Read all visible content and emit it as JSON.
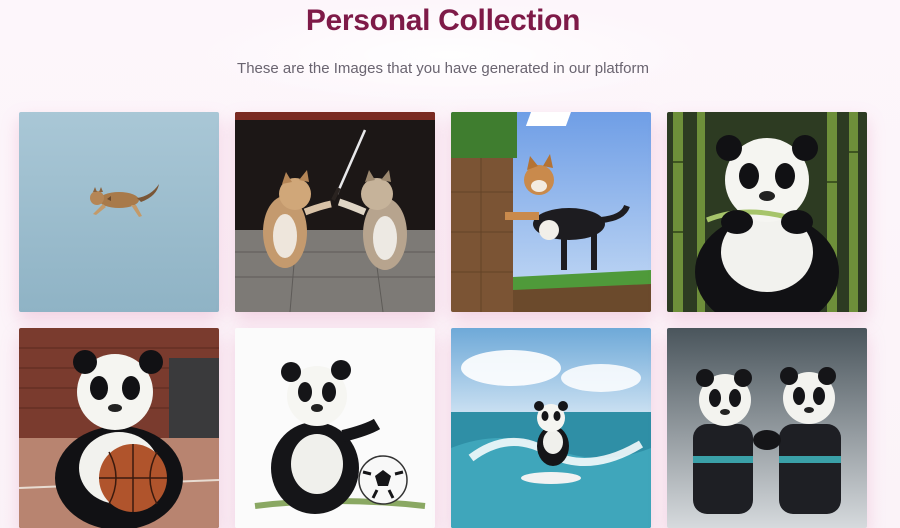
{
  "header": {
    "title": "Personal Collection",
    "subtitle": "These are the Images that you have generated in our platform"
  },
  "images": [
    {
      "subject": "cat-jumping-sky",
      "alt": "Cat leaping through a pale blue sky"
    },
    {
      "subject": "cats-sword-fight",
      "alt": "Two cats fighting with a katana"
    },
    {
      "subject": "cat-minecraft",
      "alt": "Cat on a blocky grass platform"
    },
    {
      "subject": "panda-bamboo",
      "alt": "Panda eating bamboo in a forest"
    },
    {
      "subject": "panda-basketball",
      "alt": "Panda holding a basketball on a court"
    },
    {
      "subject": "panda-soccer",
      "alt": "Panda cub playing with a soccer ball"
    },
    {
      "subject": "panda-surfing",
      "alt": "Panda surfing on an ocean wave"
    },
    {
      "subject": "pandas-karate",
      "alt": "Two pandas in karate uniforms"
    }
  ]
}
